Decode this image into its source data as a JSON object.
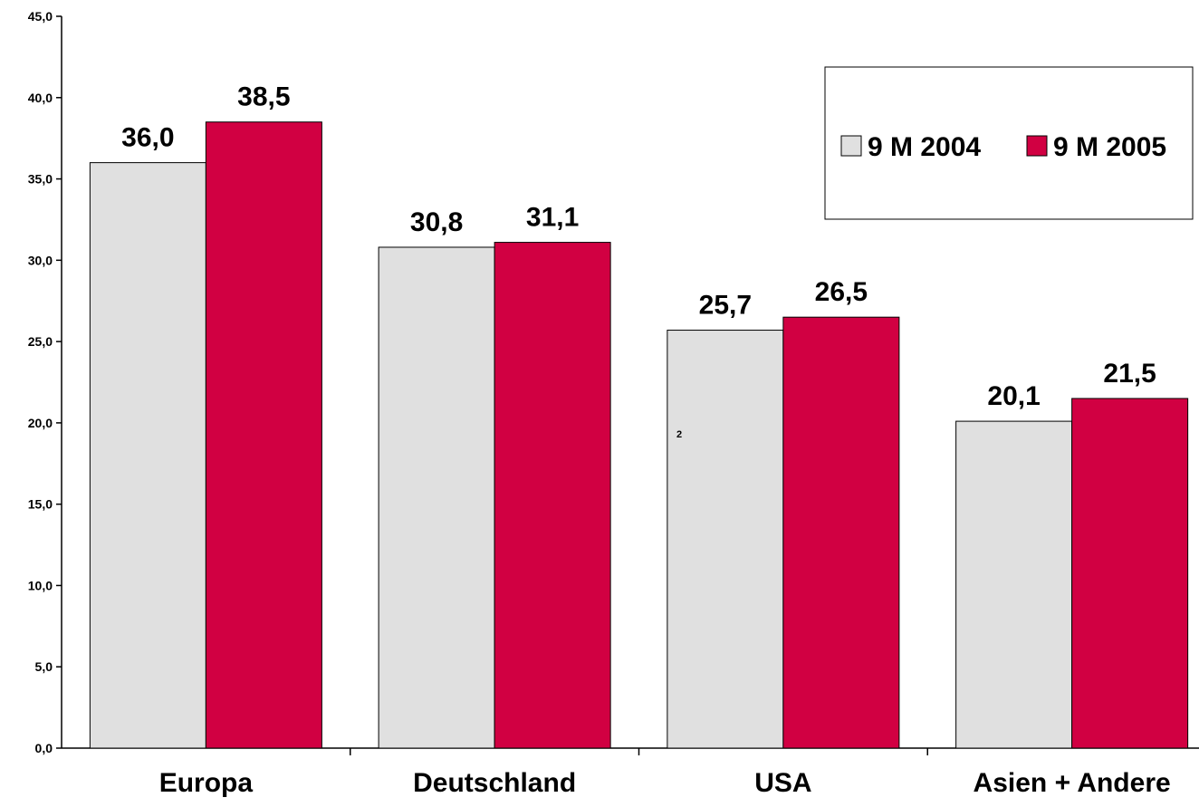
{
  "chart_data": {
    "type": "bar",
    "categories": [
      "Europa",
      "Deutschland",
      "USA",
      "Asien + Andere"
    ],
    "series": [
      {
        "name": "9 M 2004",
        "values": [
          36.0,
          30.8,
          25.7,
          20.1
        ],
        "color": "#e0e0e0"
      },
      {
        "name": "9 M 2005",
        "values": [
          38.5,
          31.1,
          26.5,
          21.5
        ],
        "color": "#d10042"
      }
    ],
    "data_labels": [
      [
        "36,0",
        "30,8",
        "25,7",
        "20,1"
      ],
      [
        "38,5",
        "31,1",
        "26,5",
        "21,5"
      ]
    ],
    "yticks": [
      0,
      5,
      10,
      15,
      20,
      25,
      30,
      35,
      40,
      45
    ],
    "ytick_labels": [
      "0,0",
      "5,0",
      "10,0",
      "15,0",
      "20,0",
      "25,0",
      "30,0",
      "35,0",
      "40,0",
      "45,0"
    ],
    "ylim": [
      0,
      45
    ],
    "grid": false,
    "legend": "top-right",
    "title": "",
    "xlabel": "",
    "ylabel": "",
    "annotation": "2"
  }
}
